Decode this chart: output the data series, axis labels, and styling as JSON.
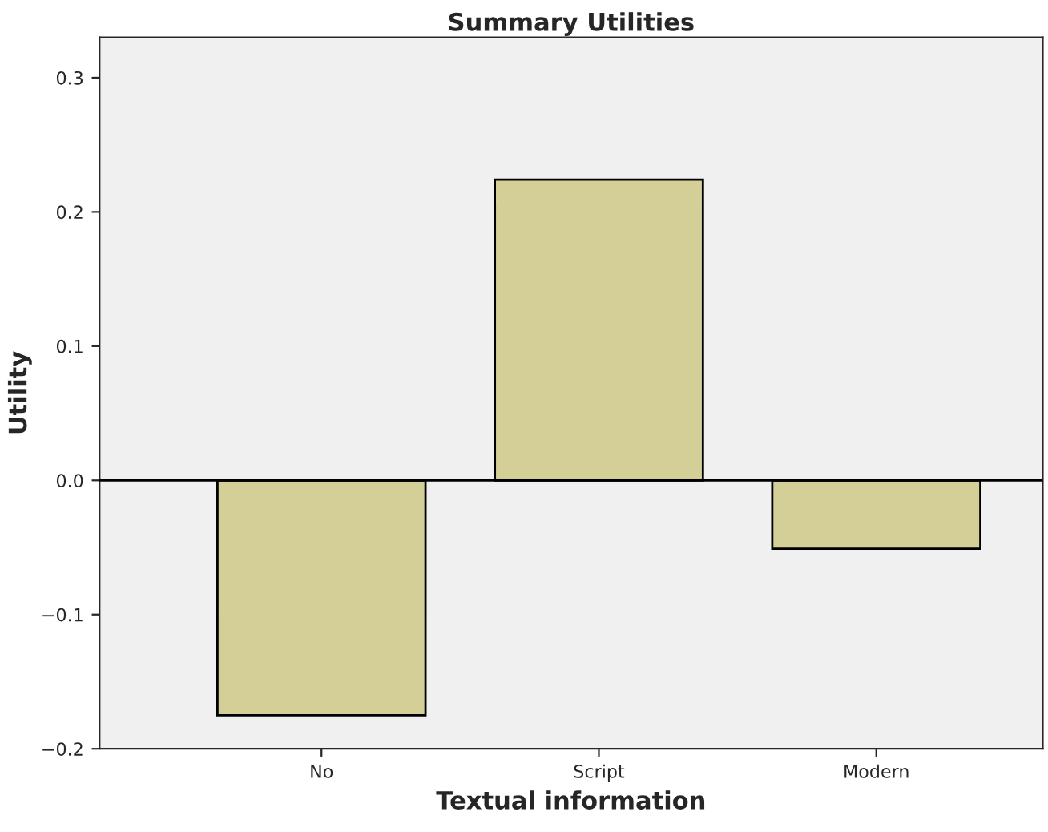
{
  "chart_data": {
    "type": "bar",
    "title": "Summary Utilities",
    "xlabel": "Textual information",
    "ylabel": "Utility",
    "categories": [
      "No",
      "Script",
      "Modern"
    ],
    "values": [
      -0.175,
      0.224,
      -0.051
    ],
    "color": "#d4cf96",
    "ylim": [
      -0.2,
      0.33
    ],
    "yticks": [
      {
        "value": -0.2,
        "label": "−0.2"
      },
      {
        "value": -0.1,
        "label": "−0.1"
      },
      {
        "value": 0,
        "label": "0.0"
      },
      {
        "value": 0.1,
        "label": "0.1"
      },
      {
        "value": 0.2,
        "label": "0.2"
      },
      {
        "value": 0.3,
        "label": "0.3"
      }
    ],
    "ref_lines": [
      {
        "axis": "y",
        "value": 0,
        "color": "#000000"
      }
    ],
    "grid": false,
    "legend": false
  }
}
